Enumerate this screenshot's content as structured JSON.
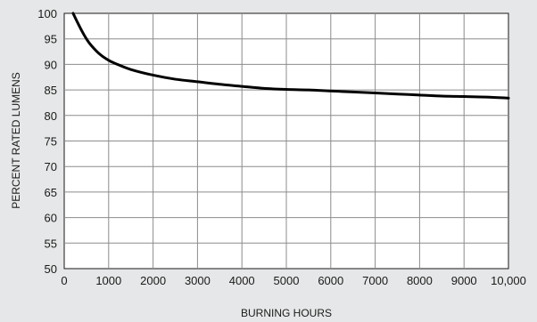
{
  "chart_data": {
    "type": "line",
    "title": "",
    "xlabel": "BURNING HOURS",
    "ylabel": "PERCENT RATED LUMENS",
    "xlim": [
      0,
      10000
    ],
    "ylim": [
      50,
      100
    ],
    "x_ticks": [
      0,
      1000,
      2000,
      3000,
      4000,
      5000,
      6000,
      7000,
      8000,
      9000,
      10000
    ],
    "x_tick_labels": [
      "0",
      "1000",
      "2000",
      "3000",
      "4000",
      "5000",
      "6000",
      "7000",
      "8000",
      "9000",
      "10,000"
    ],
    "y_ticks": [
      50,
      55,
      60,
      65,
      70,
      75,
      80,
      85,
      90,
      95,
      100
    ],
    "y_tick_labels": [
      "50",
      "55",
      "60",
      "65",
      "70",
      "75",
      "80",
      "85",
      "90",
      "95",
      "100"
    ],
    "grid": true,
    "legend": "none",
    "colors": {
      "background": "#e6e7e8",
      "plot_area": "#ffffff",
      "grid": "#8c8c8c",
      "line": "#000000"
    },
    "series": [
      {
        "x": [
          200,
          300,
          400,
          500,
          600,
          800,
          1000,
          1200,
          1500,
          2000,
          2500,
          3000,
          3500,
          4000,
          4500,
          5000,
          5500,
          6000,
          6500,
          7000,
          7500,
          8000,
          8500,
          9000,
          9500,
          10000
        ],
        "y": [
          100,
          98.2,
          96.5,
          95,
          93.8,
          92,
          90.8,
          90,
          89,
          87.9,
          87.1,
          86.6,
          86.1,
          85.7,
          85.3,
          85.1,
          85,
          84.8,
          84.6,
          84.4,
          84.2,
          84,
          83.8,
          83.7,
          83.6,
          83.4
        ]
      }
    ]
  }
}
